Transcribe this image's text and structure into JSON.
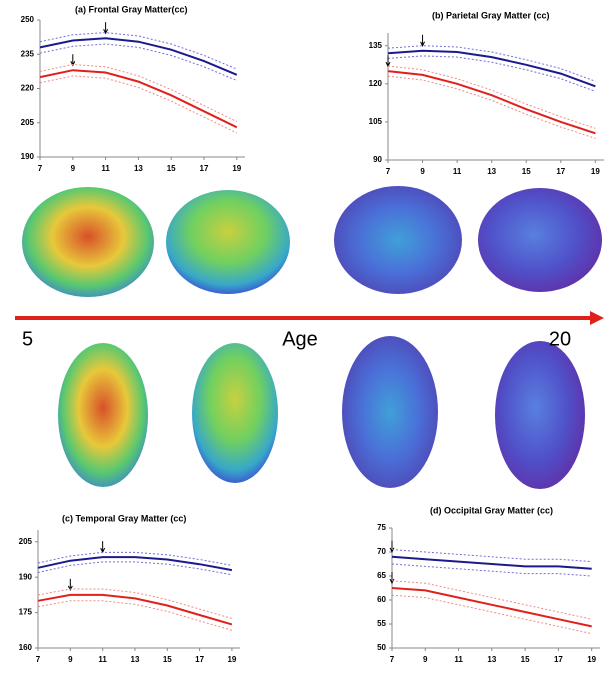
{
  "chart_data": [
    {
      "type": "line",
      "title": "(a) Frontal Gray Matter(cc)",
      "x": [
        7,
        9,
        11,
        13,
        15,
        17,
        19
      ],
      "xticks": [
        7,
        9,
        11,
        13,
        15,
        17,
        19
      ],
      "xlim": [
        7,
        19.5
      ],
      "ylim": [
        190,
        250
      ],
      "yticks": [
        190,
        205,
        220,
        235,
        250
      ],
      "series": [
        {
          "color": "#1a1a8c",
          "values": [
            238,
            241,
            242,
            240.5,
            237,
            232,
            226
          ]
        },
        {
          "color": "#6f6fd8",
          "dash": true,
          "values": [
            240.5,
            243.5,
            244.5,
            243,
            239.5,
            234.5,
            228.5
          ]
        },
        {
          "color": "#6f6fd8",
          "dash": true,
          "values": [
            235.5,
            238.5,
            239.5,
            238,
            234.5,
            229.5,
            223.5
          ]
        },
        {
          "color": "#e0201b",
          "values": [
            225,
            228,
            227,
            223,
            217,
            210,
            203
          ]
        },
        {
          "color": "#f08a86",
          "dash": true,
          "values": [
            227.5,
            230.5,
            229.5,
            225.5,
            219.5,
            212.5,
            205.5
          ]
        },
        {
          "color": "#f08a86",
          "dash": true,
          "values": [
            222.5,
            225.5,
            224.5,
            220.5,
            214.5,
            207.5,
            200.5
          ]
        }
      ]
    },
    {
      "type": "line",
      "title": "(b) Parietal Gray Matter (cc)",
      "x": [
        7,
        9,
        11,
        13,
        15,
        17,
        19
      ],
      "xticks": [
        7,
        9,
        11,
        13,
        15,
        17,
        19
      ],
      "xlim": [
        7,
        19.5
      ],
      "ylim": [
        90,
        140
      ],
      "yticks": [
        90,
        105,
        120,
        135
      ],
      "series": [
        {
          "color": "#1a1a8c",
          "values": [
            132,
            133,
            132.5,
            130.5,
            127.5,
            124,
            119
          ]
        },
        {
          "color": "#6f6fd8",
          "dash": true,
          "values": [
            134,
            135,
            134.5,
            132.5,
            129.5,
            126,
            121
          ]
        },
        {
          "color": "#6f6fd8",
          "dash": true,
          "values": [
            130,
            131,
            130.5,
            128.5,
            125.5,
            122,
            117
          ]
        },
        {
          "color": "#e0201b",
          "values": [
            125,
            123.5,
            120,
            115.5,
            110,
            105,
            100.5
          ]
        },
        {
          "color": "#f08a86",
          "dash": true,
          "values": [
            127,
            125.5,
            122,
            117.5,
            112,
            107,
            102.5
          ]
        },
        {
          "color": "#f08a86",
          "dash": true,
          "values": [
            123,
            121.5,
            118,
            113.5,
            108,
            103,
            98.5
          ]
        }
      ]
    },
    {
      "type": "line",
      "title": "(c) Temporal Gray Matter (cc)",
      "x": [
        7,
        9,
        11,
        13,
        15,
        17,
        19
      ],
      "xticks": [
        7,
        9,
        11,
        13,
        15,
        17,
        19
      ],
      "xlim": [
        7,
        19.5
      ],
      "ylim": [
        160,
        210
      ],
      "yticks": [
        160,
        175,
        190,
        205
      ],
      "series": [
        {
          "color": "#1a1a8c",
          "values": [
            194,
            197,
            198.5,
            198.5,
            197.5,
            195.5,
            193
          ]
        },
        {
          "color": "#6f6fd8",
          "dash": true,
          "values": [
            196,
            199,
            200.5,
            200.5,
            199.5,
            197.5,
            195
          ]
        },
        {
          "color": "#6f6fd8",
          "dash": true,
          "values": [
            192,
            195,
            196.5,
            196.5,
            195.5,
            193.5,
            191
          ]
        },
        {
          "color": "#e0201b",
          "values": [
            180,
            182.5,
            182.5,
            181,
            178,
            174,
            170
          ]
        },
        {
          "color": "#f08a86",
          "dash": true,
          "values": [
            182.5,
            185,
            185,
            183.5,
            180.5,
            176.5,
            172.5
          ]
        },
        {
          "color": "#f08a86",
          "dash": true,
          "values": [
            177.5,
            180,
            180,
            178.5,
            175.5,
            171.5,
            167.5
          ]
        }
      ]
    },
    {
      "type": "line",
      "title": "(d) Occipital Gray Matter (cc)",
      "x": [
        7,
        9,
        11,
        13,
        15,
        17,
        19
      ],
      "xticks": [
        7,
        9,
        11,
        13,
        15,
        17,
        19
      ],
      "xlim": [
        7,
        19.5
      ],
      "ylim": [
        50,
        75
      ],
      "yticks": [
        50,
        55,
        60,
        65,
        70,
        75
      ],
      "series": [
        {
          "color": "#1a1a8c",
          "values": [
            69,
            68.5,
            68,
            67.5,
            67,
            67,
            66.5
          ]
        },
        {
          "color": "#6f6fd8",
          "dash": true,
          "values": [
            70.5,
            70,
            69.5,
            69,
            68.5,
            68.5,
            68
          ]
        },
        {
          "color": "#6f6fd8",
          "dash": true,
          "values": [
            67.5,
            67,
            66.5,
            66,
            65.5,
            65.5,
            65
          ]
        },
        {
          "color": "#e0201b",
          "values": [
            62.5,
            62,
            60.5,
            59,
            57.5,
            56,
            54.5
          ]
        },
        {
          "color": "#f08a86",
          "dash": true,
          "values": [
            64,
            63.5,
            62,
            60.5,
            59,
            57.5,
            56
          ]
        },
        {
          "color": "#f08a86",
          "dash": true,
          "values": [
            61,
            60.5,
            59,
            57.5,
            56,
            54.5,
            53
          ]
        }
      ]
    }
  ],
  "age_axis": {
    "label": "Age",
    "start": "5",
    "end": "20"
  }
}
